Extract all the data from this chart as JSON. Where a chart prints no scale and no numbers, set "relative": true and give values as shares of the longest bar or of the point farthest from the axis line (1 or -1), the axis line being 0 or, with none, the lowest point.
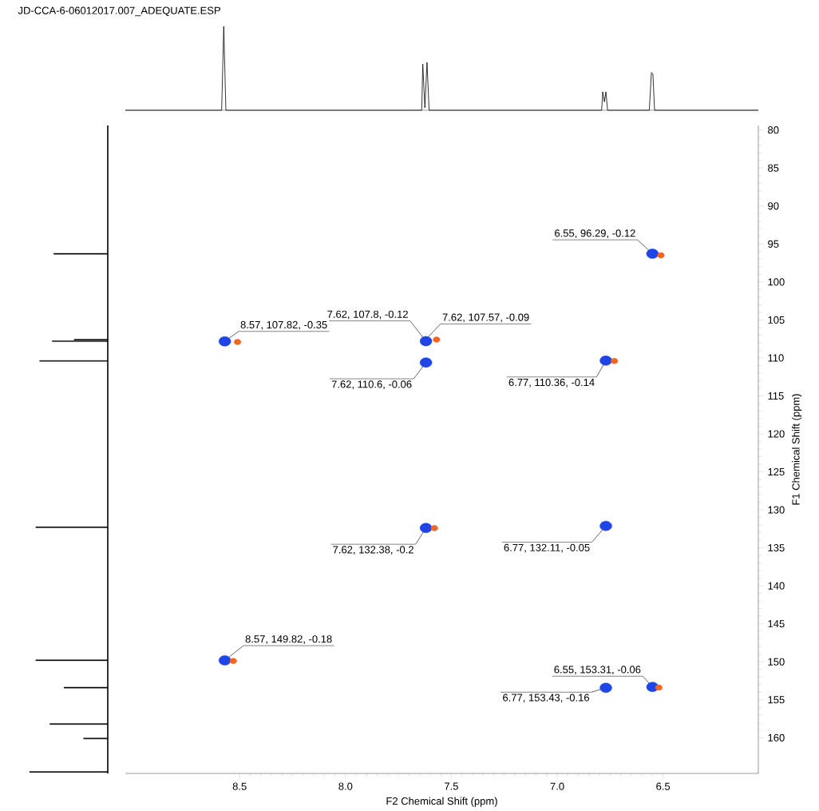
{
  "chart_data": [
    {
      "type": "scatter",
      "xlabel": "F2 Chemical Shift (ppm)",
      "ylabel": "F1 Chemical Shift (ppm)",
      "xlim": [
        9.04,
        6.05
      ],
      "ylim": [
        164.7,
        79.4
      ],
      "xticks": [
        8.5,
        {
          "value": 8.0,
          "label": "8.0"
        },
        7.5,
        {
          "value": 7.0,
          "label": "7.0"
        },
        6.5
      ],
      "yticks": [
        80,
        85,
        90,
        95,
        100,
        105,
        110,
        115,
        120,
        125,
        130,
        135,
        140,
        145,
        150,
        155,
        160
      ],
      "marker": "circle",
      "series": [
        {
          "color": "#1f45e6",
          "x": [
            8.57,
            7.62,
            7.62,
            6.77,
            6.55,
            7.62,
            6.77,
            8.57,
            6.55,
            6.77
          ],
          "values": [
            107.82,
            107.8,
            110.6,
            110.36,
            96.29,
            132.38,
            132.11,
            149.82,
            153.31,
            153.43
          ]
        },
        {
          "color": "#f26522",
          "x": [
            8.51,
            7.57,
            6.73,
            6.51,
            7.58,
            8.53,
            6.52
          ],
          "values": [
            107.9,
            107.6,
            110.4,
            96.5,
            132.4,
            149.9,
            153.4
          ]
        }
      ],
      "annotations": [
        {
          "text": "6.55, 96.29, -0.12",
          "x": 6.55,
          "y": 96.29
        },
        {
          "text": "7.62, 107.8, -0.12",
          "x": 7.62,
          "y": 107.8
        },
        {
          "text": "7.62, 107.57, -0.09",
          "x": 7.62,
          "y": 107.57
        },
        {
          "text": "8.57, 107.82, -0.35",
          "x": 8.57,
          "y": 107.82
        },
        {
          "text": "7.62, 110.6, -0.06",
          "x": 7.62,
          "y": 110.6
        },
        {
          "text": "6.77, 110.36, -0.14",
          "x": 6.77,
          "y": 110.36
        },
        {
          "text": "7.62, 132.38, -0.2",
          "x": 7.62,
          "y": 132.38
        },
        {
          "text": "6.77, 132.11, -0.05",
          "x": 6.77,
          "y": 132.11
        },
        {
          "text": "8.57, 149.82, -0.18",
          "x": 8.57,
          "y": 149.82
        },
        {
          "text": "6.55, 153.31, -0.06",
          "x": 6.55,
          "y": 153.31
        },
        {
          "text": "6.77, 153.43, -0.16",
          "x": 6.77,
          "y": 153.43
        }
      ]
    },
    {
      "type": "line",
      "title": "JD-CCA-6-06012017.007_ADEQUATE.ESP",
      "relative": true,
      "xlim": [
        9.04,
        6.05
      ],
      "tick_labels": false,
      "series": [
        {
          "color": "#000000",
          "x": [
            9.04,
            8.585,
            8.575,
            8.565,
            7.64,
            7.635,
            7.625,
            7.615,
            7.605,
            6.79,
            6.785,
            6.777,
            6.77,
            6.762,
            6.755,
            6.565,
            6.555,
            6.548,
            6.54,
            6.05
          ],
          "values": [
            0,
            0,
            1,
            0,
            0,
            0.55,
            0.03,
            0.57,
            0,
            0,
            0.22,
            0.1,
            0.22,
            0,
            0,
            0,
            0.45,
            0.43,
            0,
            0
          ]
        }
      ]
    },
    {
      "type": "bar",
      "orientation": "horizontal",
      "relative": true,
      "ylim": [
        164.7,
        79.4
      ],
      "tick_labels": false,
      "color": "#000000",
      "x": [
        96.3,
        107.6,
        107.8,
        110.4,
        132.3,
        149.8,
        153.4,
        158.2,
        160.1,
        164.5
      ],
      "values": [
        0.69,
        0.43,
        0.71,
        0.87,
        0.92,
        0.92,
        0.56,
        0.74,
        0.31,
        1.0
      ]
    }
  ]
}
